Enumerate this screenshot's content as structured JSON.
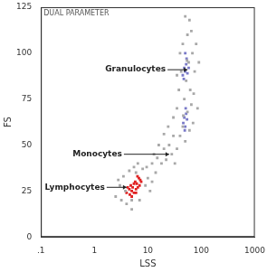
{
  "chart_data": {
    "type": "scatter",
    "title": "DUAL PARAMETER",
    "x_label": "LSS",
    "y_label": "FS",
    "log": "x",
    "grid": false,
    "xlim": [
      0.1,
      1000
    ],
    "xticks": [
      {
        "value": 0.1,
        "label": ".1"
      },
      1,
      10,
      100,
      1000
    ],
    "ylim": [
      0,
      125
    ],
    "yticks": [
      0,
      25,
      50,
      75,
      100,
      125
    ],
    "series": [
      {
        "color": "#a8a8a8",
        "marker": "square",
        "points": [
          [
            2.5,
            22
          ],
          [
            3,
            28
          ],
          [
            3.2,
            20
          ],
          [
            3.5,
            33
          ],
          [
            4,
            18
          ],
          [
            4.5,
            36
          ],
          [
            5,
            20
          ],
          [
            5.5,
            38
          ],
          [
            6,
            35
          ],
          [
            7,
            20
          ],
          [
            8,
            37
          ],
          [
            9,
            28
          ],
          [
            10,
            32
          ],
          [
            11,
            25
          ],
          [
            3.8,
            25
          ],
          [
            2.8,
            31
          ],
          [
            12,
            30
          ],
          [
            9.5,
            38
          ],
          [
            6.5,
            40
          ],
          [
            5,
            15
          ],
          [
            12,
            40
          ],
          [
            14,
            35
          ],
          [
            15,
            43
          ],
          [
            18,
            40
          ],
          [
            20,
            48
          ],
          [
            22,
            42
          ],
          [
            25,
            50
          ],
          [
            28,
            45
          ],
          [
            30,
            55
          ],
          [
            16,
            50
          ],
          [
            20,
            56
          ],
          [
            24,
            60
          ],
          [
            35,
            48
          ],
          [
            32,
            40
          ],
          [
            13,
            45
          ],
          [
            30,
            65
          ],
          [
            35,
            70
          ],
          [
            40,
            55
          ],
          [
            45,
            60
          ],
          [
            50,
            52
          ],
          [
            55,
            68
          ],
          [
            60,
            58
          ],
          [
            65,
            72
          ],
          [
            70,
            62
          ],
          [
            38,
            80
          ],
          [
            42,
            90
          ],
          [
            48,
            75
          ],
          [
            52,
            85
          ],
          [
            58,
            95
          ],
          [
            62,
            80
          ],
          [
            68,
            100
          ],
          [
            75,
            90
          ],
          [
            45,
            105
          ],
          [
            55,
            110
          ],
          [
            60,
            118
          ],
          [
            40,
            100
          ],
          [
            50,
            120
          ],
          [
            65,
            112
          ],
          [
            80,
            105
          ],
          [
            35,
            88
          ],
          [
            72,
            78
          ],
          [
            85,
            70
          ],
          [
            90,
            95
          ],
          [
            46,
            66
          ],
          [
            54,
            96
          ]
        ]
      },
      {
        "color": "#e02020",
        "marker": "square",
        "points": [
          [
            4,
            24
          ],
          [
            4.5,
            26
          ],
          [
            5,
            25
          ],
          [
            5.2,
            27
          ],
          [
            5.5,
            24
          ],
          [
            4.8,
            28
          ],
          [
            6,
            26
          ],
          [
            6.2,
            29
          ],
          [
            6.5,
            27
          ],
          [
            5.8,
            30
          ],
          [
            4.2,
            27
          ],
          [
            7,
            28
          ],
          [
            7.2,
            31
          ],
          [
            6.8,
            32
          ],
          [
            5,
            22
          ],
          [
            5.5,
            29
          ],
          [
            4.6,
            23
          ],
          [
            6,
            24
          ],
          [
            7.5,
            30
          ],
          [
            6.4,
            33
          ]
        ]
      },
      {
        "color": "#7a7ac8",
        "marker": "square",
        "points": [
          [
            45,
            88
          ],
          [
            48,
            92
          ],
          [
            50,
            90
          ],
          [
            52,
            94
          ],
          [
            55,
            89
          ],
          [
            47,
            86
          ],
          [
            53,
            97
          ],
          [
            50,
            100
          ],
          [
            58,
            92
          ],
          [
            46,
            62
          ],
          [
            48,
            65
          ],
          [
            50,
            60
          ],
          [
            52,
            67
          ],
          [
            49,
            58
          ],
          [
            54,
            64
          ],
          [
            51,
            70
          ]
        ]
      }
    ],
    "annotations": [
      {
        "text": "Granulocytes",
        "x": 55,
        "y": 91
      },
      {
        "text": "Monocytes",
        "x": 25,
        "y": 45
      },
      {
        "text": "Lymphocytes",
        "x": 4,
        "y": 27
      }
    ]
  }
}
